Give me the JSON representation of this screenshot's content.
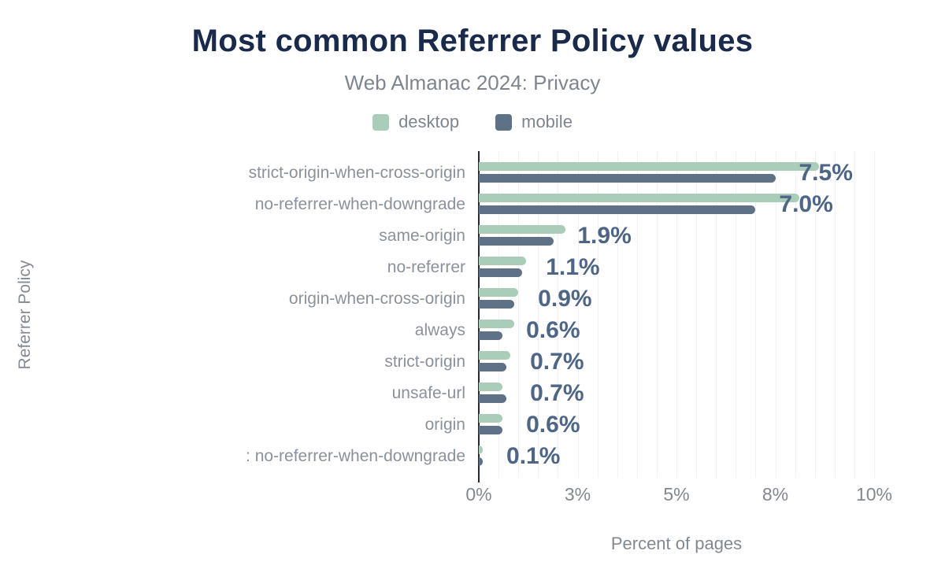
{
  "title": "Most common Referrer Policy values",
  "subtitle": "Web Almanac 2024: Privacy",
  "legend": [
    {
      "label": "desktop",
      "color": "#a9cdb8"
    },
    {
      "label": "mobile",
      "color": "#5f7186"
    }
  ],
  "colors": {
    "title_text": "#1a2a4a",
    "secondary_text": "#7e858e",
    "axis_text": "#82888f",
    "category_text": "#8b919b",
    "value_label_text": "#4e6585",
    "desktop_bar": "#a9cdb8",
    "mobile_bar": "#5f7186",
    "gridline": "#f0f1f3",
    "zero_axis_line": "#232a36",
    "background": "#ffffff"
  },
  "chart_data": {
    "type": "bar",
    "orientation": "horizontal",
    "title": "Most common Referrer Policy values",
    "subtitle": "Web Almanac 2024: Privacy",
    "xlabel": "Percent of pages",
    "ylabel": "Referrer Policy",
    "xlim": [
      0,
      10
    ],
    "grid": true,
    "grid_step": 0.5,
    "legend_position": "top",
    "x_ticks": [
      {
        "value": 0,
        "label": "0%"
      },
      {
        "value": 2.5,
        "label": "3%"
      },
      {
        "value": 5,
        "label": "5%"
      },
      {
        "value": 7.5,
        "label": "8%"
      },
      {
        "value": 10,
        "label": "10%"
      }
    ],
    "categories": [
      "strict-origin-when-cross-origin",
      "no-referrer-when-downgrade",
      "same-origin",
      "no-referrer",
      "origin-when-cross-origin",
      "always",
      "strict-origin",
      "unsafe-url",
      "origin",
      ": no-referrer-when-downgrade"
    ],
    "series": [
      {
        "name": "desktop",
        "values": [
          8.6,
          8.1,
          2.2,
          1.2,
          1.0,
          0.9,
          0.8,
          0.6,
          0.6,
          0.1
        ]
      },
      {
        "name": "mobile",
        "values": [
          7.5,
          7.0,
          1.9,
          1.1,
          0.9,
          0.6,
          0.7,
          0.7,
          0.6,
          0.1
        ]
      }
    ],
    "value_labels": [
      "7.5%",
      "7.0%",
      "1.9%",
      "1.1%",
      "0.9%",
      "0.6%",
      "0.7%",
      "0.7%",
      "0.6%",
      "0.1%"
    ]
  }
}
